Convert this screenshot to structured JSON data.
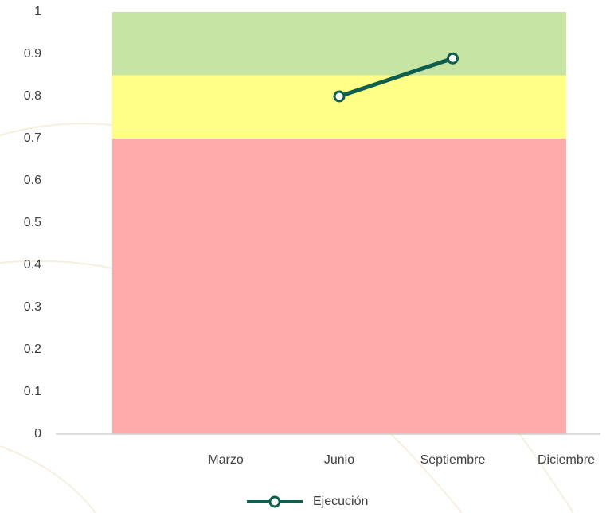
{
  "chart_data": {
    "type": "line",
    "categories": [
      null,
      "Marzo",
      "Junio",
      "Septiembre",
      "Diciembre"
    ],
    "bands": [
      {
        "color": "#ffaaaa",
        "values": [
          0.7,
          0.7,
          0.7,
          0.7,
          0.7
        ]
      },
      {
        "color": "#ffff88",
        "values": [
          0.15,
          0.15,
          0.15,
          0.15,
          0.15
        ]
      },
      {
        "color": "#c6e4a4",
        "values": [
          0.15,
          0.15,
          0.15,
          0.15,
          0.15
        ]
      }
    ],
    "series": [
      {
        "name": "Ejecución",
        "color": "#0d5e4c",
        "values": [
          null,
          null,
          0.8,
          0.89,
          null
        ]
      }
    ],
    "ylim": [
      0,
      1
    ],
    "yticks": [
      0,
      0.1,
      0.2,
      0.3,
      0.4,
      0.5,
      0.6,
      0.7,
      0.8,
      0.9,
      1
    ],
    "grid": false,
    "legend": "bottom"
  }
}
